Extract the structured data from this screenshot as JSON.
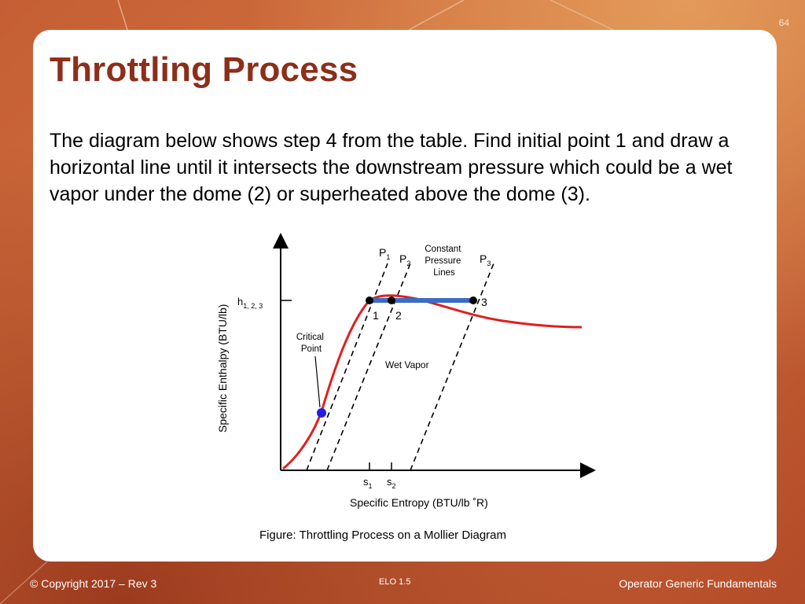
{
  "slide": {
    "number": "64",
    "title": "Throttling Process",
    "body": "The diagram below shows step 4 from the table.  Find initial point 1 and draw a horizontal line until it intersects the downstream pressure which could be a wet vapor under the dome (2) or superheated above the dome (3).",
    "caption": "Figure: Throttling Process on a Mollier Diagram"
  },
  "footer": {
    "copyright": "© Copyright 2017 – Rev 3",
    "elo": "ELO 1.5",
    "course": "Operator Generic Fundamentals"
  },
  "diagram": {
    "y_axis_label": "Specific Enthalpy (BTU/lb)",
    "x_axis_label": "Specific Entropy (BTU/lb ˚R)",
    "h_label_main": "h",
    "h_label_sub": "1, 2, 3",
    "pressure_labels": [
      {
        "main": "P",
        "sub": "1"
      },
      {
        "main": "P",
        "sub": "2"
      },
      {
        "main": "P",
        "sub": "3"
      }
    ],
    "constant_pressure_label": [
      "Constant",
      "Pressure",
      "Lines"
    ],
    "critical_point_label": [
      "Critical",
      "Point"
    ],
    "wet_vapor_label": "Wet Vapor",
    "point_labels": [
      "1",
      "2",
      "3"
    ],
    "s_labels": [
      {
        "main": "s",
        "sub": "1"
      },
      {
        "main": "s",
        "sub": "2"
      }
    ],
    "colors": {
      "saturation_curve": "#e0201e",
      "process_line": "#3a6cc4",
      "critical_point": "#2020e0",
      "points": "#000000"
    }
  }
}
